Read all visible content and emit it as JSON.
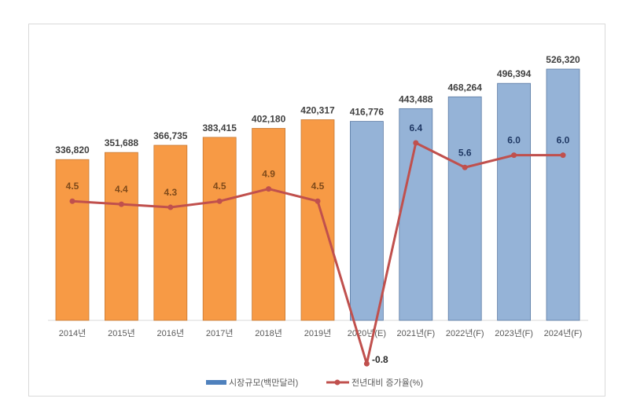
{
  "chart_data": {
    "type": "bar+line",
    "categories": [
      "2014년",
      "2015년",
      "2016년",
      "2017년",
      "2018년",
      "2019년",
      "2020년(E)",
      "2021년(F)",
      "2022년(F)",
      "2023년(F)",
      "2024년(F)"
    ],
    "series": [
      {
        "name": "시장규모(백만달러)",
        "type": "bar",
        "values": [
          336820,
          351688,
          366735,
          383415,
          402180,
          420317,
          416776,
          443488,
          468264,
          496394,
          526320
        ],
        "labels": [
          "336,820",
          "351,688",
          "366,735",
          "383,415",
          "402,180",
          "420,317",
          "416,776",
          "443,488",
          "468,264",
          "496,394",
          "526,320"
        ],
        "colors": [
          "#F79A45",
          "#F79A45",
          "#F79A45",
          "#F79A45",
          "#F79A45",
          "#F79A45",
          "#95B3D7",
          "#95B3D7",
          "#95B3D7",
          "#95B3D7",
          "#95B3D7"
        ]
      },
      {
        "name": "전년대비 증가율(%)",
        "type": "line",
        "axis": "secondary",
        "values": [
          4.5,
          4.4,
          4.3,
          4.5,
          4.9,
          4.5,
          -0.8,
          6.4,
          5.6,
          6.0,
          6.0
        ],
        "labels": [
          "4.5",
          "4.4",
          "4.3",
          "4.5",
          "4.9",
          "4.5",
          "-0.8",
          "6.4",
          "5.6",
          "6.0",
          "6.0"
        ],
        "color": "#C0504D"
      }
    ],
    "ylim": [
      0,
      526320
    ],
    "grid": false,
    "legend": "bottom",
    "colors": {
      "actual": "#F79A45",
      "forecast": "#95B3D7",
      "line": "#C0504D",
      "legend_bar": "#4F81BD"
    }
  }
}
